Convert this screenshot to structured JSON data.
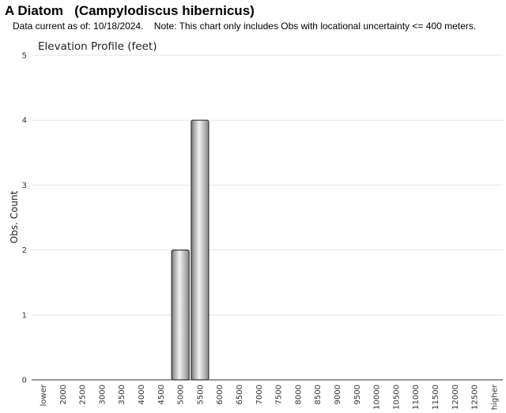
{
  "header": {
    "title": "A Diatom   (Campylodiscus hibernicus)",
    "subtitle": "Data current as of: 10/18/2024.    Note: This chart only includes Obs with locational uncertainty <= 400 meters."
  },
  "chart_data": {
    "type": "bar",
    "title": "Elevation Profile (feet)",
    "xlabel": "",
    "ylabel": "Obs. Count",
    "ylim": [
      0,
      5
    ],
    "yticks": [
      "0",
      "1",
      "2",
      "3",
      "4",
      "5"
    ],
    "grid": true,
    "categories": [
      "lower",
      "2000",
      "2500",
      "3000",
      "3500",
      "4000",
      "4500",
      "5000",
      "5500",
      "6000",
      "6500",
      "7000",
      "7500",
      "8000",
      "8500",
      "9000",
      "9500",
      "10000",
      "10500",
      "11000",
      "11500",
      "12000",
      "12500",
      "higher"
    ],
    "values": [
      0,
      0,
      0,
      0,
      0,
      0,
      0,
      2,
      4,
      0,
      0,
      0,
      0,
      0,
      0,
      0,
      0,
      0,
      0,
      0,
      0,
      0,
      0,
      0
    ]
  }
}
